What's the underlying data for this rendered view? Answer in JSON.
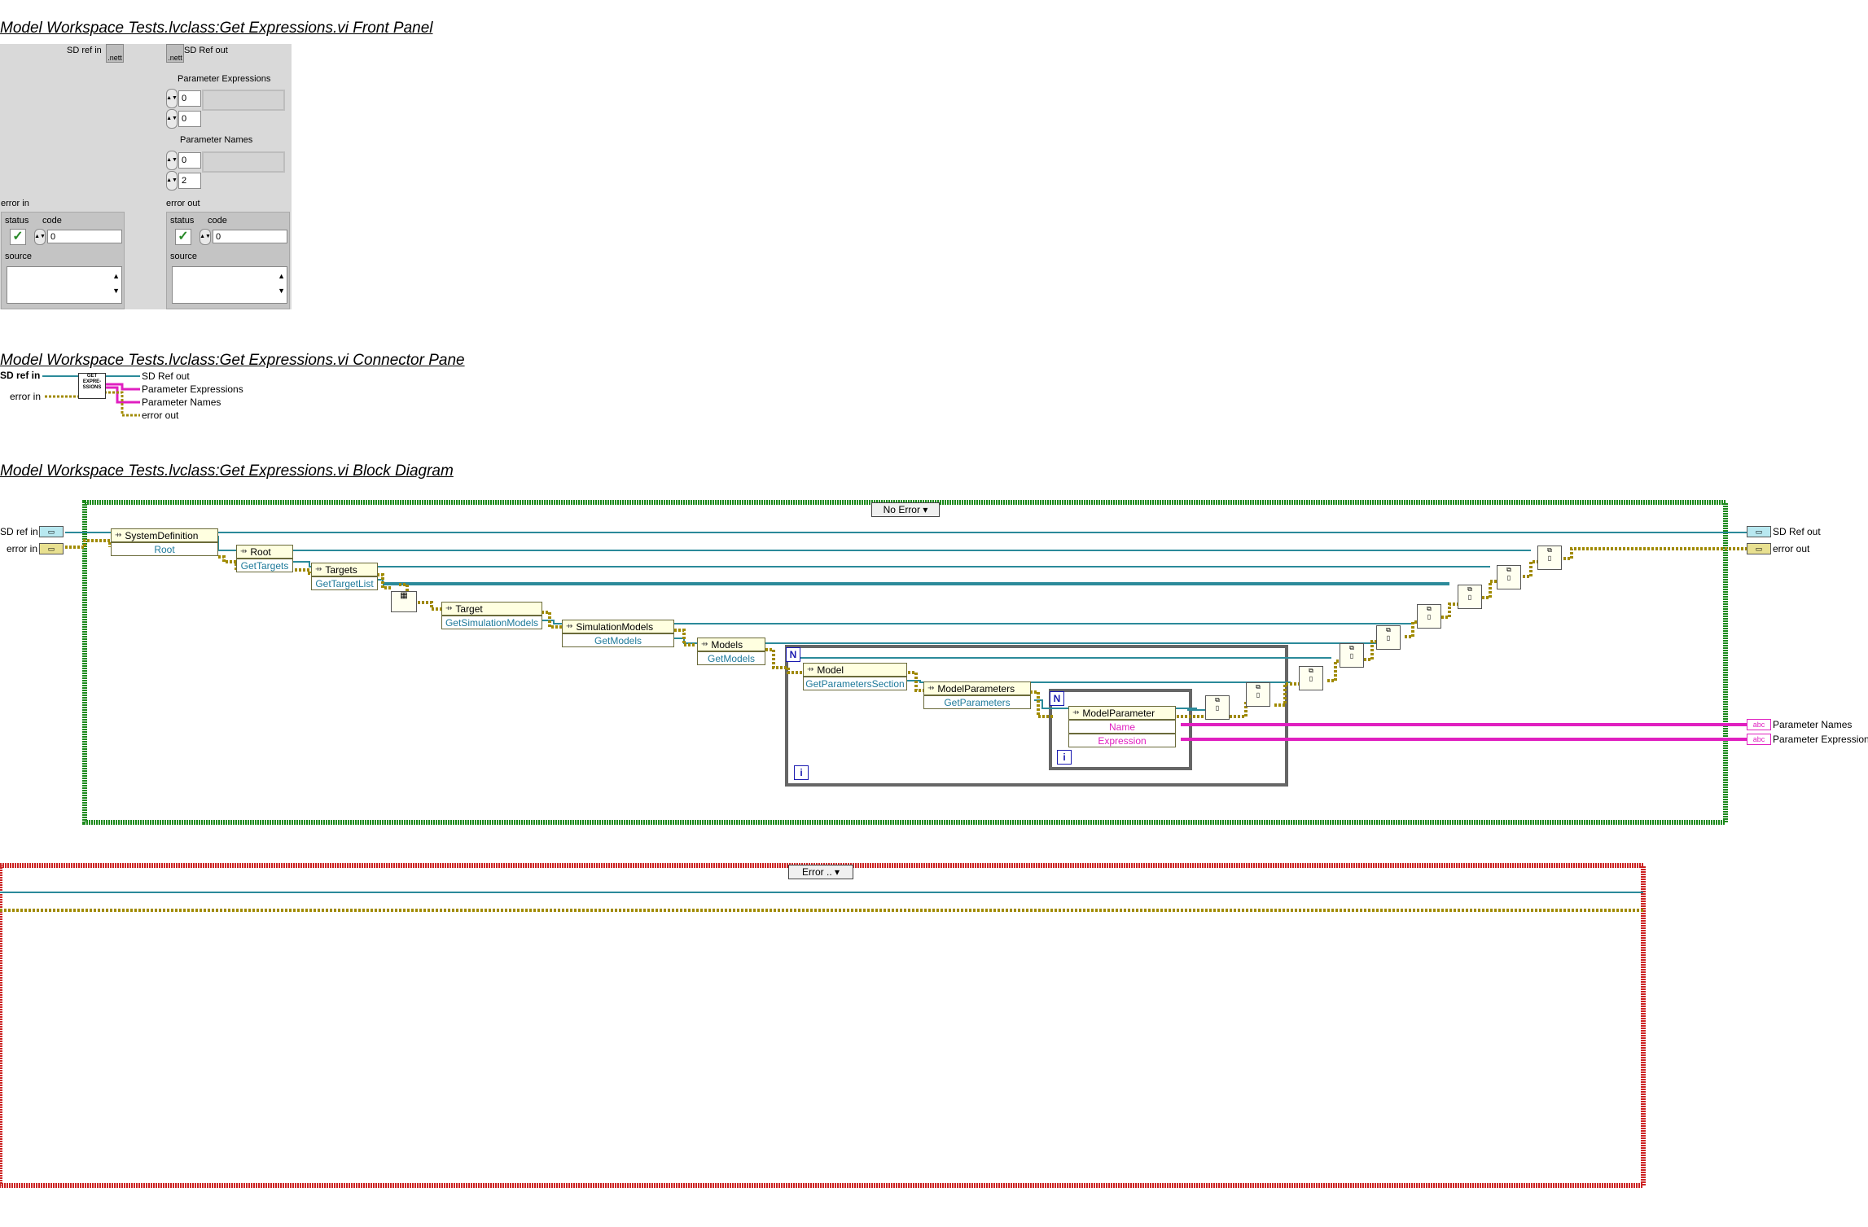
{
  "headings": {
    "front_panel": "Model Workspace Tests.lvclass:Get Expressions.vi Front Panel",
    "connector_pane": "Model Workspace Tests.lvclass:Get Expressions.vi Connector Pane",
    "block_diagram": "Model Workspace Tests.lvclass:Get Expressions.vi Block Diagram"
  },
  "front_panel": {
    "sd_ref_in": "SD ref in",
    "sd_ref_out": "SD Ref out",
    "ref_icon_text": ".nett",
    "param_expr_label": "Parameter Expressions",
    "param_expr_idx1": "0",
    "param_expr_idx2": "0",
    "param_names_label": "Parameter Names",
    "param_names_idx1": "0",
    "param_names_idx2": "2",
    "error_in": {
      "label": "error in",
      "status": "status",
      "code": "code",
      "code_value": "0",
      "source": "source"
    },
    "error_out": {
      "label": "error out",
      "status": "status",
      "code": "code",
      "code_value": "0",
      "source": "source"
    }
  },
  "connector_pane": {
    "sd_ref_in": "SD ref in",
    "error_in": "error in",
    "sd_ref_out": "SD Ref out",
    "param_expr": "Parameter Expressions",
    "param_names": "Parameter Names",
    "error_out": "error out",
    "icon_text": "GET EXPRE-SSIONS"
  },
  "block_diagram": {
    "case_no_error": "No Error",
    "case_error": "Error ..",
    "inputs": {
      "sd_ref_in": "SD ref in",
      "error_in": "error in"
    },
    "outputs": {
      "sd_ref_out": "SD Ref out",
      "error_out": "error out",
      "param_names": "Parameter Names",
      "param_expr": "Parameter Expressions"
    },
    "nodes": {
      "system_definition": "SystemDefinition",
      "root_prop": "Root",
      "root": "Root",
      "get_targets": "GetTargets",
      "targets": "Targets",
      "get_target_list": "GetTargetList",
      "target": "Target",
      "get_simulation_models": "GetSimulationModels",
      "simulation_models": "SimulationModels",
      "get_models_1": "GetModels",
      "models": "Models",
      "get_models_2": "GetModels",
      "model": "Model",
      "get_parameters_section": "GetParametersSection",
      "model_parameters": "ModelParameters",
      "get_parameters": "GetParameters",
      "model_parameter": "ModelParameter",
      "name": "Name",
      "expression": "Expression"
    },
    "loop_n": "N",
    "loop_i": "i"
  },
  "colors": {
    "refwire": "#2b8a9a",
    "errwire": "#a08a00",
    "stringwire": "#e020c0",
    "case_green": "#1c8a1c",
    "case_red": "#cc2222"
  }
}
